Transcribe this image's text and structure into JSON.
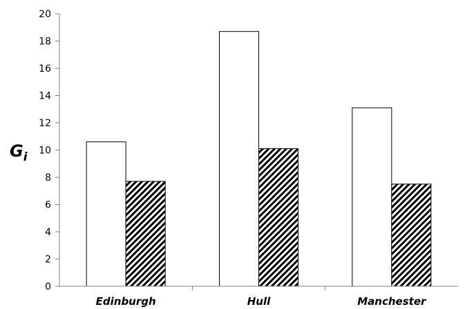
{
  "chart_data": {
    "type": "bar",
    "title": "",
    "xlabel": "",
    "ylabel": "G",
    "ylabel_subscript": "i",
    "categories": [
      "Edinburgh",
      "Hull",
      "Manchester"
    ],
    "series": [
      {
        "fill": "white",
        "values": [
          10.6,
          18.7,
          13.1
        ]
      },
      {
        "fill": "diagonal-hatch",
        "values": [
          7.7,
          10.1,
          7.5
        ]
      }
    ],
    "ylim": [
      0,
      20
    ],
    "yticks": [
      0,
      2,
      4,
      6,
      8,
      10,
      12,
      14,
      16,
      18,
      20
    ],
    "grid": false,
    "legend": "none",
    "colors": {
      "bar_stroke": "#000000",
      "hatch": "#000000",
      "axis": "#808080",
      "open_fill": "#ffffff"
    }
  }
}
